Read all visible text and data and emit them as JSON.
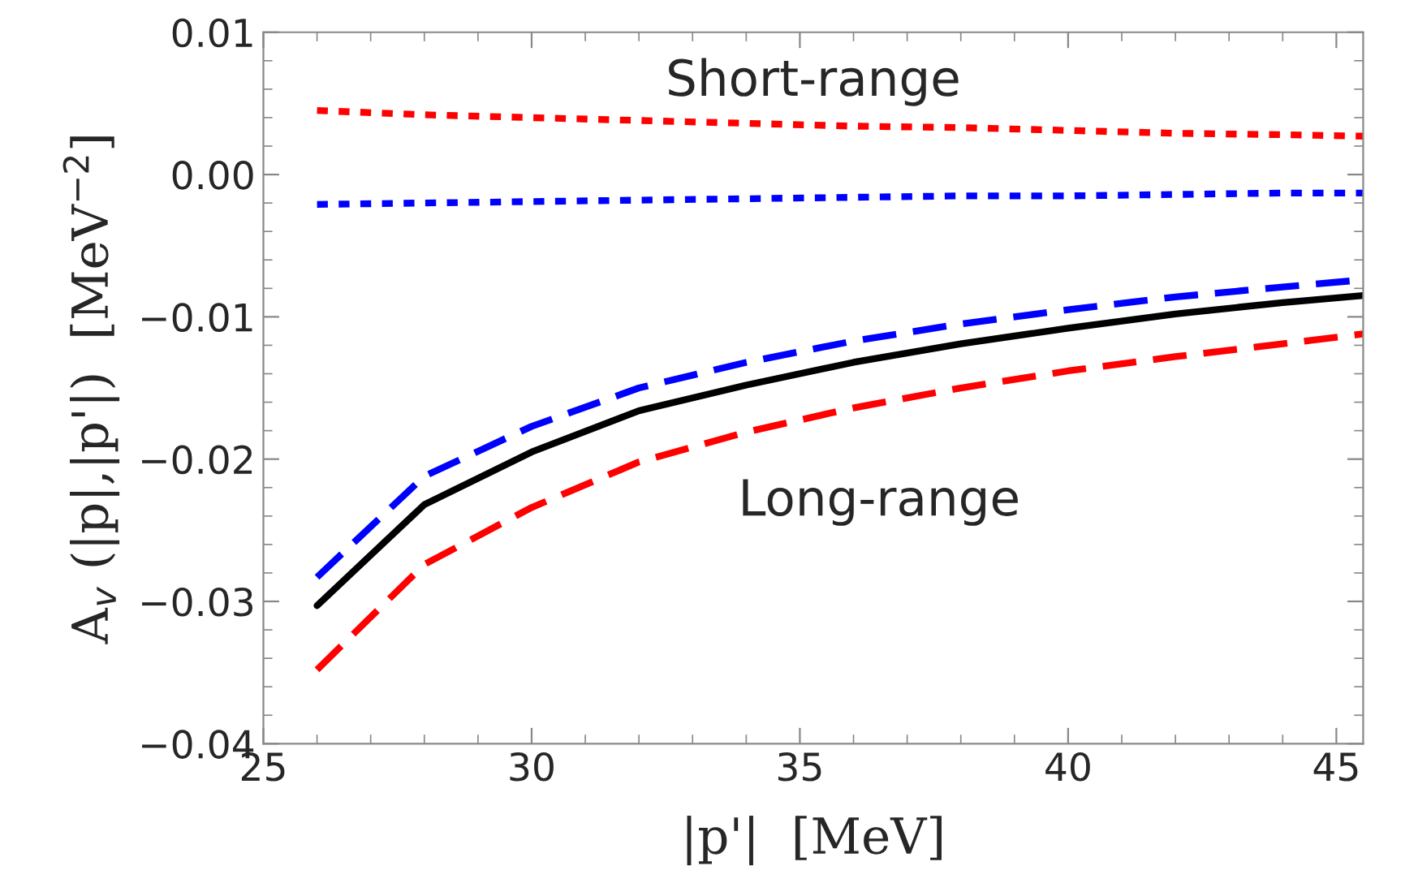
{
  "chart_data": {
    "type": "line",
    "xlabel": "|p'|  [MeV]",
    "ylabel": "A$_{v}$ (|p|,|p'|)  [MeV$^{−2}$]",
    "x": [
      26,
      28,
      30,
      32,
      34,
      36,
      38,
      40,
      42,
      44,
      45.5
    ],
    "series": [
      {
        "color": "#ff0000",
        "line_style": "dotted",
        "values": [
          0.0045,
          0.0042,
          0.004,
          0.0038,
          0.0036,
          0.0034,
          0.0033,
          0.0031,
          0.0029,
          0.0028,
          0.0027
        ]
      },
      {
        "color": "#0000ff",
        "line_style": "dotted",
        "values": [
          -0.0021,
          -0.002,
          -0.0019,
          -0.0018,
          -0.0017,
          -0.0016,
          -0.0015,
          -0.0015,
          -0.0014,
          -0.0013,
          -0.0013
        ]
      },
      {
        "color": "#0000ff",
        "line_style": "dashed",
        "values": [
          -0.0283,
          -0.0212,
          -0.0177,
          -0.015,
          -0.0132,
          -0.0117,
          -0.0105,
          -0.0095,
          -0.0086,
          -0.0079,
          -0.0074
        ]
      },
      {
        "color": "#000000",
        "line_style": "solid",
        "values": [
          -0.0303,
          -0.0232,
          -0.0195,
          -0.0166,
          -0.0148,
          -0.0132,
          -0.0119,
          -0.0108,
          -0.0098,
          -0.009,
          -0.0085
        ]
      },
      {
        "color": "#ff0000",
        "line_style": "dashed",
        "values": [
          -0.0348,
          -0.0274,
          -0.0234,
          -0.0202,
          -0.0181,
          -0.0164,
          -0.015,
          -0.0138,
          -0.0128,
          -0.0119,
          -0.0112
        ]
      }
    ],
    "annotations": [
      "Short-range",
      "Long-range"
    ],
    "xlim": [
      25,
      45.5
    ],
    "xticks": [
      25,
      30,
      35,
      40,
      45
    ],
    "ylim": [
      -0.04,
      0.01
    ],
    "yticks": [
      {
        "value": -0.04,
        "label": "−0.04"
      },
      {
        "value": -0.03,
        "label": "−0.03"
      },
      {
        "value": -0.02,
        "label": "−0.02"
      },
      {
        "value": -0.01,
        "label": "−0.01"
      },
      {
        "value": 0,
        "label": "0.00"
      },
      {
        "value": 0.01,
        "label": "0.01"
      }
    ],
    "grid": false,
    "legend": false
  }
}
